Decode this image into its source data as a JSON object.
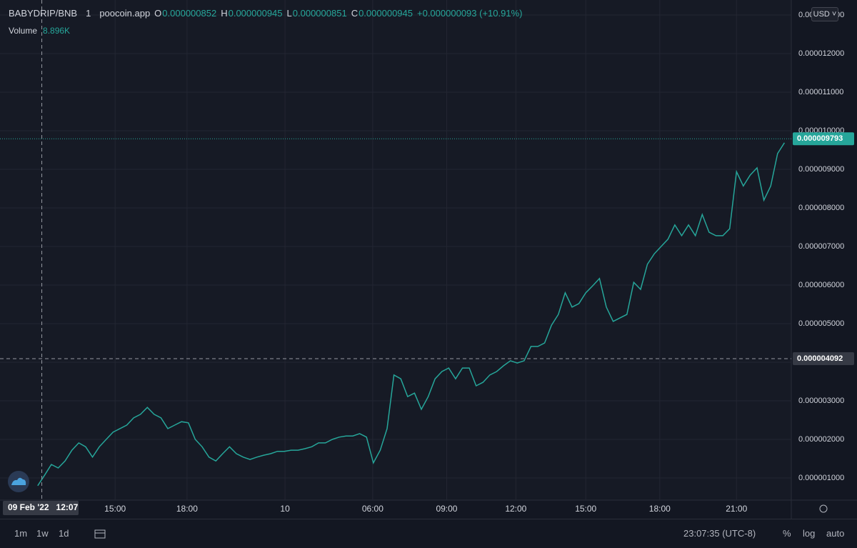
{
  "header": {
    "symbol": "BABYDRIP/BNB",
    "interval": "1",
    "source": "poocoin.app",
    "ohlc": [
      {
        "key": "O",
        "value": "0.000000852"
      },
      {
        "key": "H",
        "value": "0.000000945"
      },
      {
        "key": "L",
        "value": "0.000000851"
      },
      {
        "key": "C",
        "value": "0.000000945"
      }
    ],
    "change": "+0.000000093 (+10.91%)",
    "volume_label": "Volume",
    "volume_value": "8.896K",
    "currency": "USD"
  },
  "chart_data": {
    "type": "line",
    "color": "#26a69a",
    "grid": true,
    "x": [
      0,
      1,
      2,
      3,
      4,
      5,
      6,
      7,
      8,
      9,
      10,
      11,
      12,
      13,
      14,
      15,
      16,
      17,
      18,
      19,
      20,
      21,
      22,
      23,
      24,
      25,
      26,
      27,
      28,
      29,
      30,
      31,
      32,
      33,
      34,
      35,
      36,
      37,
      38,
      39,
      40,
      41,
      42,
      43,
      44,
      45,
      46,
      47,
      48,
      49,
      50,
      51,
      52,
      53,
      54,
      55,
      56,
      57,
      58,
      59,
      60,
      61,
      62,
      63,
      64,
      65,
      66,
      67,
      68,
      69,
      70,
      71,
      72,
      73,
      74,
      75,
      76,
      77,
      78,
      79,
      80,
      81,
      82,
      83,
      84,
      85,
      86,
      87,
      88,
      89,
      90,
      91,
      92,
      93,
      94,
      95,
      96,
      97,
      98,
      99,
      100,
      101,
      102,
      103,
      104,
      105,
      106,
      107,
      108,
      109
    ],
    "values": [
      8e-07,
      1.07e-06,
      1.35e-06,
      1.26e-06,
      1.44e-06,
      1.72e-06,
      1.91e-06,
      1.81e-06,
      1.54e-06,
      1.81e-06,
      2e-06,
      2.19e-06,
      2.28e-06,
      2.37e-06,
      2.56e-06,
      2.65e-06,
      2.83e-06,
      2.65e-06,
      2.56e-06,
      2.28e-06,
      2.37e-06,
      2.46e-06,
      2.43e-06,
      2e-06,
      1.81e-06,
      1.54e-06,
      1.44e-06,
      1.63e-06,
      1.81e-06,
      1.63e-06,
      1.54e-06,
      1.48e-06,
      1.54e-06,
      1.59e-06,
      1.63e-06,
      1.69e-06,
      1.69e-06,
      1.72e-06,
      1.72e-06,
      1.76e-06,
      1.81e-06,
      1.91e-06,
      1.91e-06,
      2e-06,
      2.06e-06,
      2.09e-06,
      2.09e-06,
      2.15e-06,
      2.06e-06,
      1.39e-06,
      1.72e-06,
      2.28e-06,
      3.67e-06,
      3.57e-06,
      3.11e-06,
      3.2e-06,
      2.78e-06,
      3.11e-06,
      3.57e-06,
      3.76e-06,
      3.85e-06,
      3.57e-06,
      3.85e-06,
      3.85e-06,
      3.39e-06,
      3.48e-06,
      3.67e-06,
      3.76e-06,
      3.91e-06,
      4.04e-06,
      3.98e-06,
      4.04e-06,
      4.41e-06,
      4.41e-06,
      4.5e-06,
      4.96e-06,
      5.24e-06,
      5.8e-06,
      5.43e-06,
      5.52e-06,
      5.8e-06,
      5.98e-06,
      6.17e-06,
      5.43e-06,
      5.06e-06,
      5.15e-06,
      5.24e-06,
      6.07e-06,
      5.89e-06,
      6.54e-06,
      6.81e-06,
      7e-06,
      7.19e-06,
      7.56e-06,
      7.28e-06,
      7.56e-06,
      7.28e-06,
      7.83e-06,
      7.37e-06,
      7.28e-06,
      7.28e-06,
      7.46e-06,
      8.94e-06,
      8.57e-06,
      8.85e-06,
      9.04e-06,
      8.2e-06,
      8.57e-06,
      9.41e-06,
      9.69e-06
    ],
    "xlim": [
      -5.5,
      110
    ],
    "xticks": [
      {
        "value": 11.3,
        "label": "15:00"
      },
      {
        "value": 21.8,
        "label": "18:00"
      },
      {
        "value": 36.1,
        "label": "10"
      },
      {
        "value": 48.9,
        "label": "06:00"
      },
      {
        "value": 59.7,
        "label": "09:00"
      },
      {
        "value": 69.8,
        "label": "12:00"
      },
      {
        "value": 80.0,
        "label": "15:00"
      },
      {
        "value": 90.8,
        "label": "18:00"
      },
      {
        "value": 102.0,
        "label": "21:00"
      }
    ],
    "ylim": [
      4.26e-07,
      1.339e-05
    ],
    "yticks": [
      {
        "value": 1e-06,
        "label": "0.000001000"
      },
      {
        "value": 2e-06,
        "label": "0.000002000"
      },
      {
        "value": 3e-06,
        "label": "0.000003000"
      },
      {
        "value": 4e-06,
        "label": "0.000004000"
      },
      {
        "value": 5e-06,
        "label": "0.000005000"
      },
      {
        "value": 6e-06,
        "label": "0.000006000"
      },
      {
        "value": 7e-06,
        "label": "0.000007000"
      },
      {
        "value": 8e-06,
        "label": "0.000008000"
      },
      {
        "value": 9e-06,
        "label": "0.000009000"
      },
      {
        "value": 1e-05,
        "label": "0.000010000"
      },
      {
        "value": 1.1e-05,
        "label": "0.000011000"
      },
      {
        "value": 1.2e-05,
        "label": "0.000012000"
      },
      {
        "value": 1.3e-05,
        "label": "0.000013000"
      }
    ],
    "last_price": {
      "value": 9.793e-06,
      "label": "0.000009793"
    },
    "crosshair": {
      "x": 0.6,
      "value": 4.092e-06,
      "label": "0.000004092",
      "time_label": "09 Feb '22   12:07"
    }
  },
  "toolbar": {
    "ranges": [
      "1m",
      "1w",
      "1d"
    ],
    "clock": "23:07:35 (UTC-8)",
    "options": [
      "%",
      "log",
      "auto"
    ]
  }
}
